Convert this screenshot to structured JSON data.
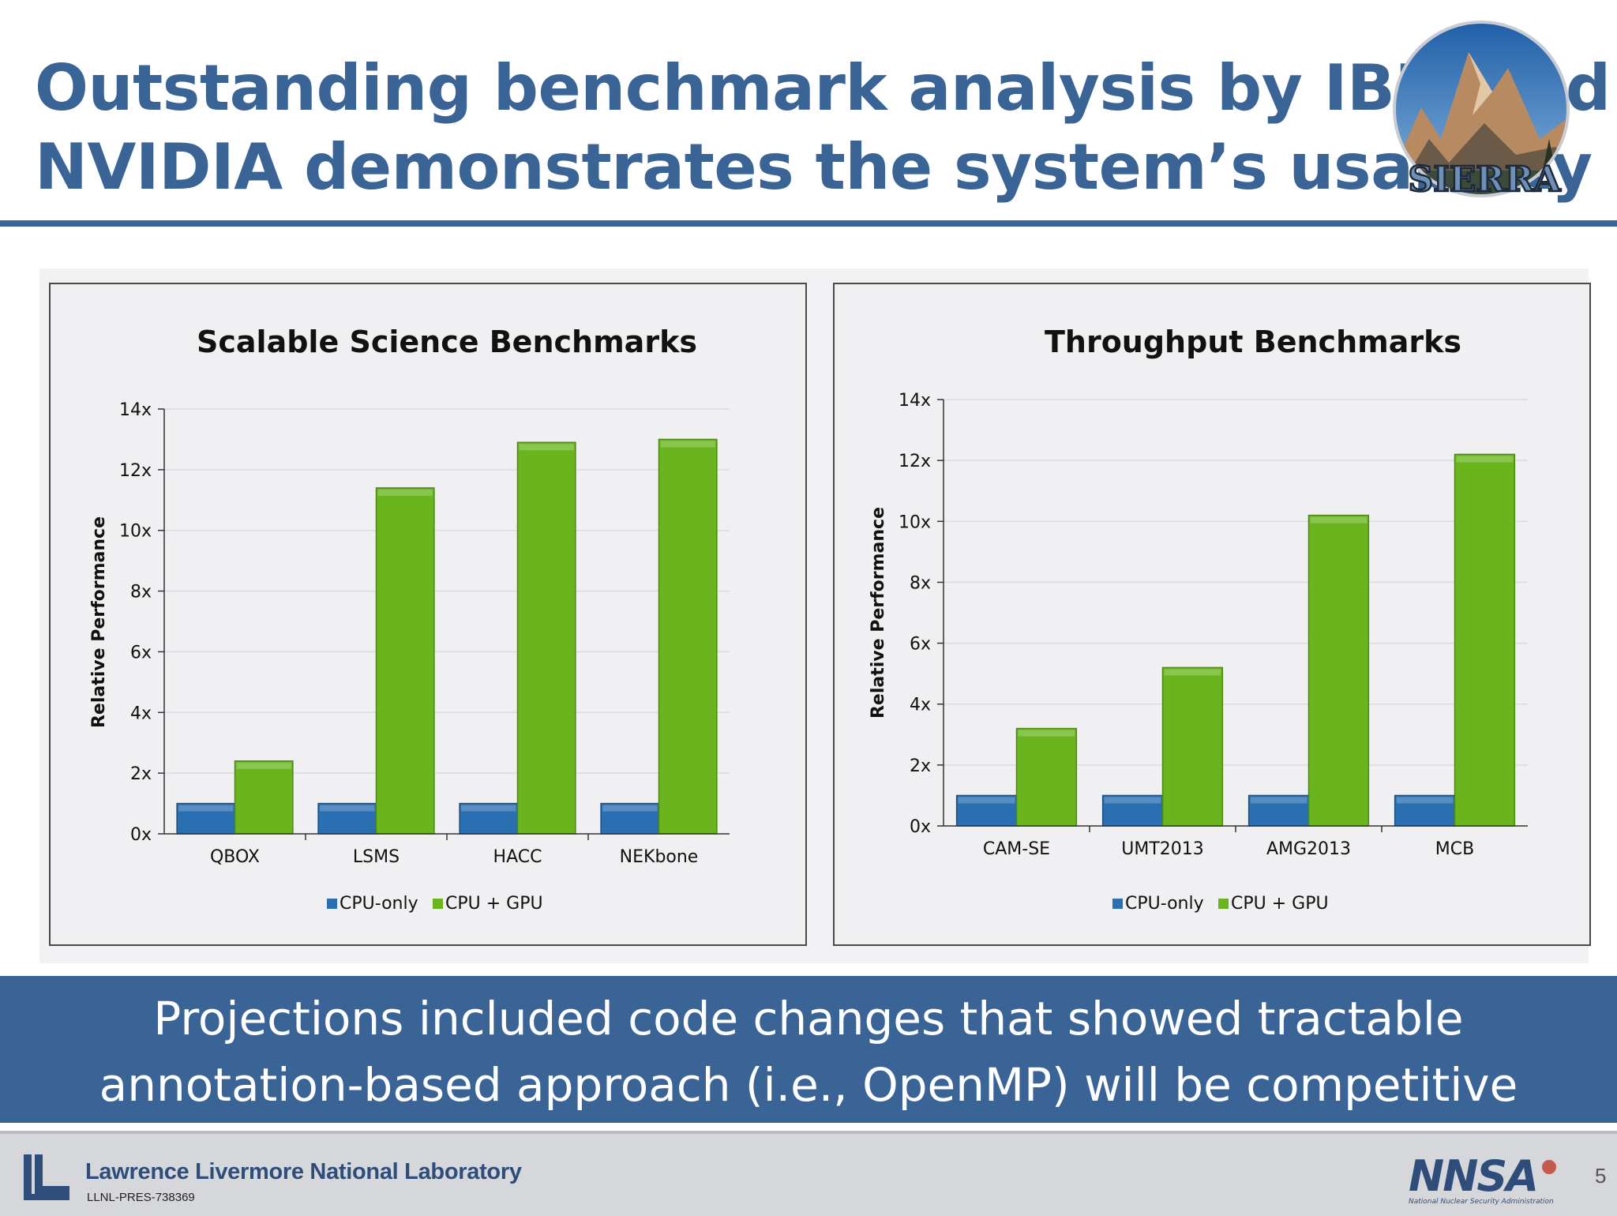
{
  "slide": {
    "title_line1": "Outstanding benchmark analysis by IBM and",
    "title_line2": "NVIDIA demonstrates the system’s usability",
    "logo_text": "SIERRA",
    "banner_line1": "Projections included code changes that showed tractable",
    "banner_line2": "annotation-based approach (i.e., OpenMP) will be competitive",
    "footer_lab": "Lawrence Livermore National Laboratory",
    "footer_id": "LLNL-PRES-738369",
    "nnsa_text": "NNSA",
    "nnsa_subtext": "National Nuclear Security Administration",
    "page_number": "5"
  },
  "colors": {
    "accent": "#3a6496",
    "cpu_only": "#2a6fb2",
    "cpu_gpu": "#6ab51e"
  },
  "chart_data": [
    {
      "type": "bar",
      "title": "Scalable Science Benchmarks",
      "xlabel": "",
      "ylabel": "Relative Performance",
      "ylim": [
        0,
        14
      ],
      "yticks": [
        "0x",
        "2x",
        "4x",
        "6x",
        "8x",
        "10x",
        "12x",
        "14x"
      ],
      "categories": [
        "QBOX",
        "LSMS",
        "HACC",
        "NEKbone"
      ],
      "series": [
        {
          "name": "CPU-only",
          "values": [
            1,
            1,
            1,
            1
          ]
        },
        {
          "name": "CPU + GPU",
          "values": [
            2.4,
            11.4,
            12.9,
            13.0
          ]
        }
      ],
      "legend": "bottom"
    },
    {
      "type": "bar",
      "title": "Throughput Benchmarks",
      "xlabel": "",
      "ylabel": "Relative Performance",
      "ylim": [
        0,
        14
      ],
      "yticks": [
        "0x",
        "2x",
        "4x",
        "6x",
        "8x",
        "10x",
        "12x",
        "14x"
      ],
      "categories": [
        "CAM-SE",
        "UMT2013",
        "AMG2013",
        "MCB"
      ],
      "series": [
        {
          "name": "CPU-only",
          "values": [
            1,
            1,
            1,
            1
          ]
        },
        {
          "name": "CPU + GPU",
          "values": [
            3.2,
            5.2,
            10.2,
            12.2
          ]
        }
      ],
      "legend": "bottom"
    }
  ]
}
